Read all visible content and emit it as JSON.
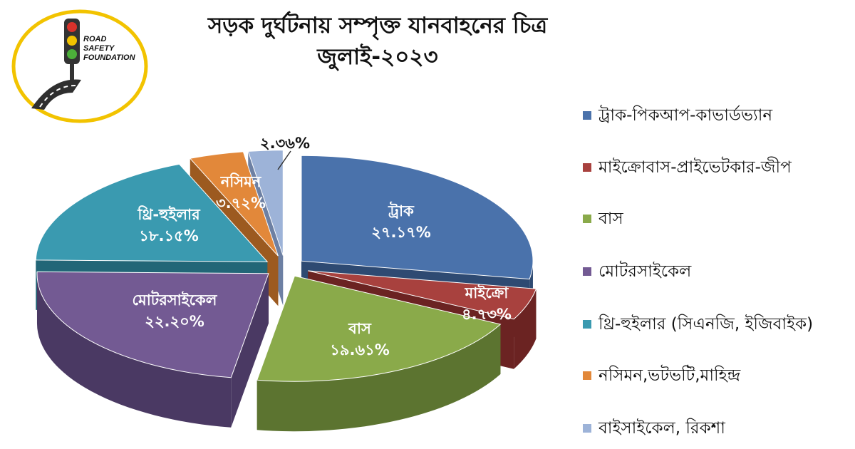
{
  "logo": {
    "line1": "ROAD",
    "line2": "SAFETY",
    "line3": "FOUNDATION"
  },
  "chart_data": {
    "type": "pie",
    "title": "সড়ক দুর্ঘটনায় সম্পৃক্ত যানবাহনের চিত্র",
    "subtitle": "জুলাই-২০২৩",
    "legend_position": "right",
    "slices": [
      {
        "legend": "ট্রাক-পিকআপ-কাভার্ডভ্যান",
        "label": "ট্রাক",
        "value_label": "২৭.১৭%",
        "value": 27.17,
        "color": "#4A72AB",
        "dark": "#2E4A72"
      },
      {
        "legend": "মাইক্রোবাস-প্রাইভেটকার-জীপ",
        "label": "মাইক্রো",
        "value_label": "৪.৭৩%",
        "value": 4.73,
        "color": "#A8413E",
        "dark": "#6B2322"
      },
      {
        "legend": "বাস",
        "label": "বাস",
        "value_label": "১৯.৬১%",
        "value": 19.61,
        "color": "#8AAA4A",
        "dark": "#5C7430"
      },
      {
        "legend": "মোটরসাইকেল",
        "label": "মোটরসাইকেল",
        "value_label": "২২.২০%",
        "value": 22.2,
        "color": "#735A93",
        "dark": "#4A3963"
      },
      {
        "legend": "থ্রি-হুইলার (সিএনজি, ইজিবাইক)",
        "label": "থ্রি-হুইলার",
        "value_label": "১৮.১৫%",
        "value": 18.15,
        "color": "#3A9AB0",
        "dark": "#226677"
      },
      {
        "legend": "নসিমন,ভটভটি,মাহিন্দ্র",
        "label": "নসিমন",
        "value_label": "৩.৭২%",
        "value": 3.72,
        "color": "#E2883A",
        "dark": "#9C5A20"
      },
      {
        "legend": "বাইসাইকেল, রিকশা",
        "label": "",
        "value_label": "২.৩৬%",
        "value": 2.36,
        "color": "#9DB3D8",
        "dark": "#6D80A3"
      }
    ]
  }
}
